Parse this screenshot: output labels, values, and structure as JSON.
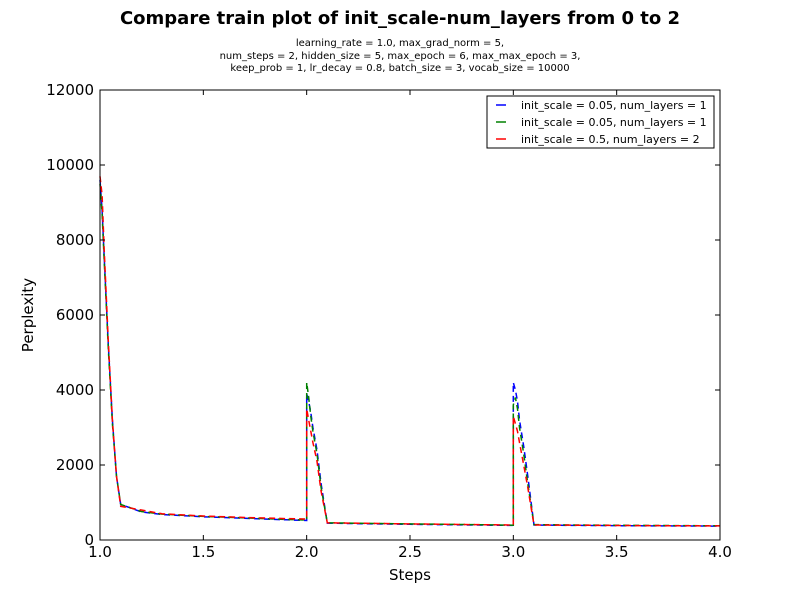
{
  "chart_data": {
    "type": "line",
    "title": "Compare train plot of init_scale-num_layers from 0 to 2",
    "subtitle_lines": [
      "learning_rate = 1.0, max_grad_norm = 5,",
      "num_steps = 2, hidden_size = 5, max_epoch = 6, max_max_epoch = 3,",
      "keep_prob = 1, lr_decay = 0.8, batch_size = 3, vocab_size = 10000"
    ],
    "xlabel": "Steps",
    "ylabel": "Perplexity",
    "xlim": [
      1.0,
      4.0
    ],
    "ylim": [
      0,
      12000
    ],
    "xticks": [
      "1.0",
      "1.5",
      "2.0",
      "2.5",
      "3.0",
      "3.5",
      "4.0"
    ],
    "yticks": [
      "0",
      "2000",
      "4000",
      "6000",
      "8000",
      "10000",
      "12000"
    ],
    "legend_position": "top-right",
    "grid": false,
    "series": [
      {
        "name": "init_scale = 0.05, num_layers = 1",
        "color": "#0000ff",
        "line_style": "dashed",
        "x": [
          1.0,
          1.01,
          1.02,
          1.04,
          1.06,
          1.08,
          1.1,
          1.2,
          1.3,
          1.5,
          1.7,
          1.9,
          2.0,
          2.0,
          2.01,
          2.02,
          2.03,
          2.05,
          2.07,
          2.1,
          2.2,
          2.5,
          2.8,
          3.0,
          3.0,
          3.01,
          3.02,
          3.03,
          3.05,
          3.07,
          3.1,
          3.3,
          3.6,
          4.0
        ],
        "y": [
          9600,
          8800,
          7600,
          5200,
          3200,
          1700,
          950,
          750,
          680,
          620,
          580,
          540,
          520,
          3900,
          3700,
          3400,
          3000,
          2400,
          1500,
          450,
          440,
          420,
          400,
          390,
          4200,
          4000,
          3700,
          3200,
          2500,
          1700,
          400,
          390,
          380,
          370
        ]
      },
      {
        "name": "init_scale = 0.05, num_layers = 1",
        "color": "#008000",
        "line_style": "dashed",
        "x": [
          1.0,
          1.01,
          1.02,
          1.04,
          1.06,
          1.08,
          1.1,
          1.2,
          1.3,
          1.5,
          1.7,
          1.9,
          2.0,
          2.0,
          2.01,
          2.02,
          2.03,
          2.05,
          2.07,
          2.1,
          2.2,
          2.5,
          2.8,
          3.0,
          3.0,
          3.01,
          3.02,
          3.03,
          3.05,
          3.07,
          3.1,
          3.3,
          3.6,
          4.0
        ],
        "y": [
          9500,
          8700,
          7500,
          5100,
          3100,
          1700,
          950,
          760,
          690,
          630,
          590,
          550,
          530,
          4200,
          3800,
          3300,
          2900,
          2300,
          1400,
          460,
          450,
          430,
          410,
          395,
          3600,
          3800,
          3500,
          3000,
          2300,
          1500,
          410,
          400,
          390,
          380
        ]
      },
      {
        "name": "init_scale = 0.5, num_layers = 2",
        "color": "#ff0000",
        "line_style": "dashed",
        "x": [
          1.0,
          1.01,
          1.02,
          1.04,
          1.06,
          1.08,
          1.1,
          1.2,
          1.3,
          1.5,
          1.7,
          1.9,
          2.0,
          2.0,
          2.01,
          2.02,
          2.03,
          2.05,
          2.07,
          2.1,
          2.2,
          2.5,
          2.8,
          3.0,
          3.0,
          3.01,
          3.02,
          3.03,
          3.05,
          3.07,
          3.1,
          3.3,
          3.6,
          4.0
        ],
        "y": [
          9700,
          9200,
          7800,
          5300,
          3200,
          1700,
          900,
          800,
          700,
          640,
          600,
          570,
          560,
          3500,
          3200,
          2900,
          2600,
          2100,
          1300,
          460,
          450,
          430,
          410,
          400,
          3300,
          3100,
          2900,
          2600,
          2000,
          1400,
          400,
          395,
          385,
          375
        ]
      }
    ]
  }
}
